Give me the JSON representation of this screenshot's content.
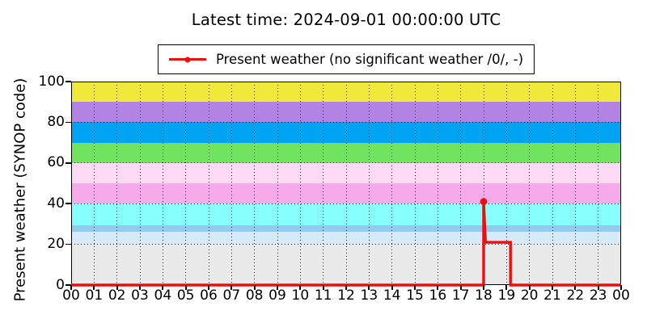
{
  "title": "Latest time: 2024-09-01 00:00:00 UTC",
  "chart_data": {
    "type": "line",
    "title": "Latest time: 2024-09-01 00:00:00 UTC",
    "xlabel": "",
    "ylabel": "Present weather (SYNOP code)",
    "xlim": [
      0,
      24
    ],
    "ylim": [
      0,
      100
    ],
    "x_tick_labels": [
      "00",
      "01",
      "02",
      "03",
      "04",
      "05",
      "06",
      "07",
      "08",
      "09",
      "10",
      "11",
      "12",
      "13",
      "14",
      "15",
      "16",
      "17",
      "18",
      "19",
      "20",
      "21",
      "22",
      "23",
      "00"
    ],
    "y_ticks": [
      0,
      20,
      40,
      60,
      80,
      100
    ],
    "grid": "dotted, vertical each hour, horizontal each 20 units",
    "legend_position": "top-center, boxed",
    "frame_color": "#000000",
    "legend": {
      "label": "Present weather (no significant weather /0/, -)"
    },
    "series": [
      {
        "name": "Present weather (no significant weather /0/, -)",
        "color": "#ee0e0e",
        "summary": "SYNOP code 0 from 00:00 to 18:00, spike to 41 at 18:00, 21 from ~18:05 to ~19:10, then 0 until 24:00",
        "points": [
          [
            0,
            0
          ],
          [
            18,
            0
          ],
          [
            18,
            41
          ],
          [
            18.08,
            21
          ],
          [
            19.17,
            21
          ],
          [
            19.17,
            0
          ],
          [
            24,
            0
          ]
        ],
        "markers": [
          {
            "x": 18,
            "y": 41
          }
        ]
      }
    ],
    "bands": [
      {
        "from": 0,
        "to": 20,
        "color": "#e9e9e9"
      },
      {
        "from": 20,
        "to": 26,
        "color": "#d6eafa"
      },
      {
        "from": 26,
        "to": 29.5,
        "color": "#95c9f0"
      },
      {
        "from": 29.5,
        "to": 40,
        "color": "#88ffff"
      },
      {
        "from": 40,
        "to": 50,
        "color": "#f5abe9"
      },
      {
        "from": 50,
        "to": 60,
        "color": "#fcd9f4"
      },
      {
        "from": 60,
        "to": 70,
        "color": "#72e35f"
      },
      {
        "from": 70,
        "to": 80,
        "color": "#00a2f2"
      },
      {
        "from": 80,
        "to": 90,
        "color": "#b383e4"
      },
      {
        "from": 90,
        "to": 100,
        "color": "#f1e93a"
      }
    ]
  }
}
